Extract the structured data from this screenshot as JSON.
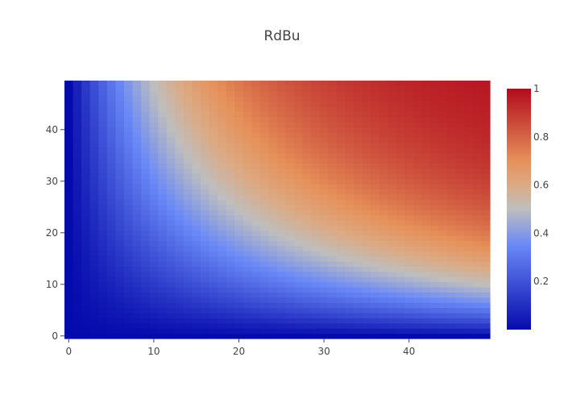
{
  "chart_data": {
    "type": "heatmap",
    "title": "RdBu",
    "xlabel": "",
    "ylabel": "",
    "x_range": [
      0,
      49
    ],
    "y_range": [
      0,
      49
    ],
    "z_range": [
      0,
      1
    ],
    "z_formula": "z = 1 - exp(-(x * y) / 700)",
    "x_ticks": [
      "0",
      "10",
      "20",
      "30",
      "40"
    ],
    "y_ticks": [
      "0",
      "10",
      "20",
      "30",
      "40"
    ],
    "colorbar": {
      "ticks": [
        "0.2",
        "0.4",
        "0.6",
        "0.8",
        "1"
      ],
      "colorscale": [
        [
          0,
          "#050aac"
        ],
        [
          0.35,
          "#6a89f7"
        ],
        [
          0.5,
          "#bebebe"
        ],
        [
          0.6,
          "#dcaa84"
        ],
        [
          0.7,
          "#e6915a"
        ],
        [
          1,
          "#b20a1c"
        ]
      ]
    },
    "grid": false
  }
}
